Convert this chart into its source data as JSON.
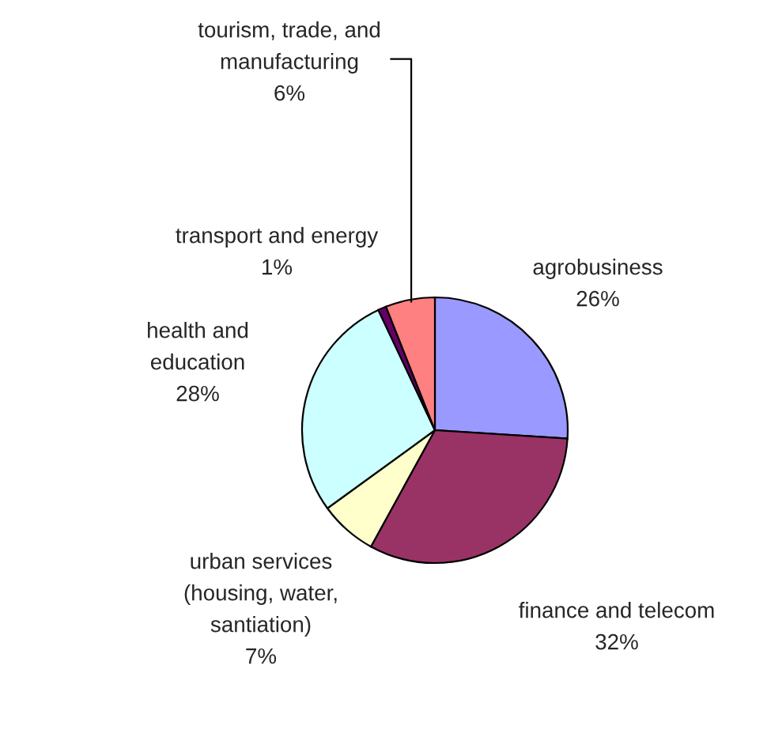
{
  "chart_data": {
    "type": "pie",
    "categories": [
      "agrobusiness",
      "finance and telecom",
      "urban services\n(housing, water,\nsantiation)",
      "health and\neducation",
      "transport and energy",
      "tourism, trade, and\nmanufacturing"
    ],
    "values": [
      26,
      32,
      7,
      28,
      1,
      6
    ],
    "value_labels": [
      "26%",
      "32%",
      "7%",
      "28%",
      "1%",
      "6%"
    ],
    "colors": [
      "#9999ff",
      "#993366",
      "#ffffcc",
      "#ccffff",
      "#660066",
      "#ff8080"
    ]
  }
}
